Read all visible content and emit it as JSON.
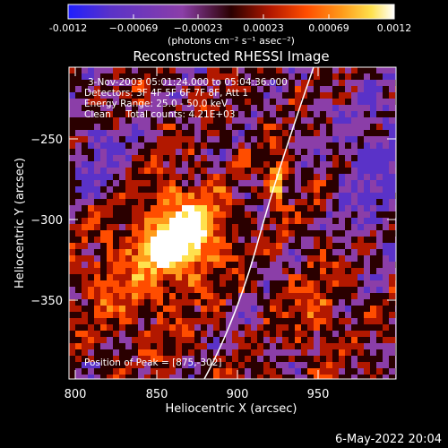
{
  "colorbar": {
    "ticks": [
      "-0.0012",
      "−0.00069",
      "−0.00023",
      "0.00023",
      "0.00069",
      "0.0012"
    ],
    "unit_label": "(photons cm⁻² s⁻¹ asec⁻²)",
    "colormap": [
      "#1f1fff",
      "#5a32c8",
      "#8b3ea8",
      "#2a0000",
      "#b21800",
      "#ff4d00",
      "#ff9b1a",
      "#ffe14d",
      "#ffffff"
    ]
  },
  "plot": {
    "title": "Reconstructed RHESSI Image",
    "xlabel": "Heliocentric X (arcsec)",
    "ylabel": "Heliocentric Y (arcsec)",
    "xticks": [
      "800",
      "850",
      "900",
      "950"
    ],
    "yticks": [
      "−250",
      "−300",
      "−350"
    ],
    "annotations": [
      "3-Nov-2003 05:01:24.000 to 05:04:36.000",
      "Detectors: 3F 4F 5F 6F 7F 8F, Att 1",
      "Energy Range: 25.0 - 50.0 keV",
      "Clean     Total counts: 4.21E+03"
    ],
    "peak_label": "Position of Peak = [875,-302]"
  },
  "footer": {
    "date": "6-May-2022 20:04"
  }
}
